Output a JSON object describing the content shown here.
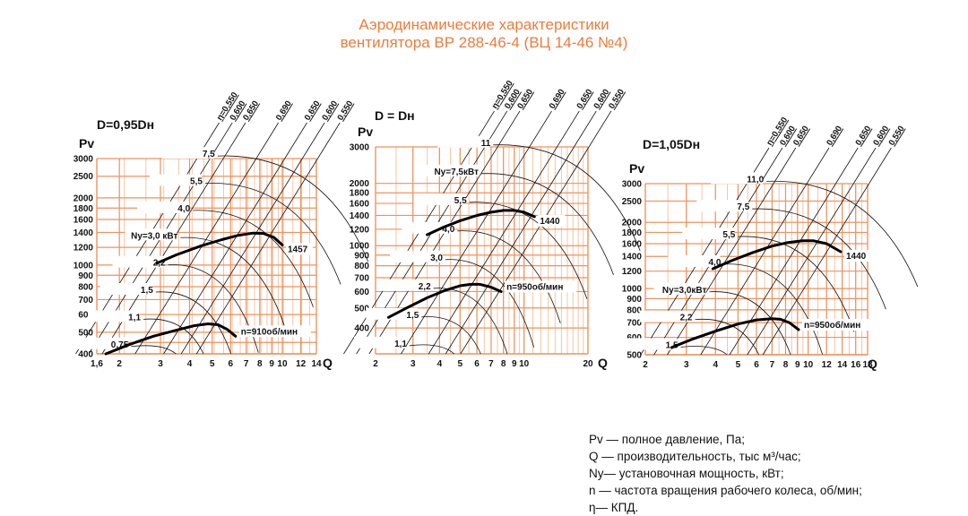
{
  "title": {
    "line1": "Аэродинамические характеристики",
    "line2": "вентилятора  ВР 288-46-4 (ВЦ 14-46 №4)"
  },
  "legend": [
    "Pv — полное давление, Па;",
    "Q  — производительность, тыс м³/час;",
    "Ny— установочная мощность, кВт;",
    "n — частота вращения рабочего колеса, об/мин;",
    "η— КПД."
  ],
  "colors": {
    "title": "#ef7b3b",
    "grid": "#f2905a",
    "grid_light": "#f8c4a3",
    "curve": "#000000"
  },
  "chart_data": [
    {
      "type": "line",
      "title": "D=0,95Dн",
      "xlabel": "Q",
      "ylabel": "Pv",
      "xscale": "log",
      "yscale": "log",
      "xlim": [
        1.6,
        14
      ],
      "ylim": [
        400,
        3000
      ],
      "x_ticks": [
        "1,6",
        "2",
        "3",
        "4",
        "5",
        "6",
        "7",
        "8",
        "9",
        "10",
        "12",
        "14"
      ],
      "x_tick_values": [
        1.6,
        2,
        3,
        4,
        5,
        6,
        7,
        8,
        9,
        10,
        12,
        14
      ],
      "y_ticks": [
        "3000",
        "2500",
        "2000",
        "1800",
        "1600",
        "1400",
        "1200",
        "1000",
        "900",
        "800",
        "700",
        "600",
        "500",
        "450",
        "400"
      ],
      "y_tick_values": [
        3000,
        2500,
        2000,
        1800,
        1600,
        1400,
        1200,
        1000,
        900,
        800,
        700,
        600,
        500,
        450,
        400
      ],
      "grid": true,
      "series": [
        {
          "name": "1457",
          "x": [
            2.9,
            3.5,
            4.5,
            5.5,
            6.5,
            7.5,
            8.3,
            9.2,
            10.0
          ],
          "y": [
            1020,
            1110,
            1220,
            1300,
            1360,
            1390,
            1385,
            1330,
            1230
          ]
        },
        {
          "name": "n=910об/мин",
          "x": [
            1.75,
            2.2,
            2.8,
            3.5,
            4.2,
            4.8,
            5.3,
            5.8,
            6.3
          ],
          "y": [
            400,
            440,
            480,
            510,
            535,
            545,
            540,
            515,
            480
          ]
        }
      ],
      "power_labels": [
        "0,75",
        "1,1",
        "1,5",
        "2,2",
        "Ny=3,0 кВт",
        "4,0",
        "5,5",
        "7,5"
      ],
      "efficiency_labels": [
        "η=0,550",
        "0,600",
        "0,650",
        "0,690",
        "0,650",
        "0,600",
        "0,550"
      ],
      "annotations": [
        "1457",
        "n=910об/мин"
      ]
    },
    {
      "type": "line",
      "title": "D = Dн",
      "xlabel": "Q",
      "ylabel": "Pv",
      "xscale": "log",
      "yscale": "log",
      "xlim": [
        2,
        20
      ],
      "ylim": [
        300,
        3000
      ],
      "x_ticks": [
        "2",
        "3",
        "4",
        "5",
        "6",
        "7",
        "8",
        "9",
        "10",
        "20"
      ],
      "x_tick_values": [
        2,
        3,
        4,
        5,
        6,
        7,
        8,
        9,
        10,
        20
      ],
      "y_ticks": [
        "3000",
        "2000",
        "1800",
        "1600",
        "1400",
        "1200",
        "1000",
        "900",
        "800",
        "700",
        "600",
        "500",
        "400"
      ],
      "y_tick_values": [
        3000,
        2000,
        1800,
        1600,
        1400,
        1200,
        1000,
        900,
        800,
        700,
        600,
        500,
        400
      ],
      "grid": true,
      "series": [
        {
          "name": "1440",
          "x": [
            3.5,
            4.2,
            5.0,
            6.0,
            7.0,
            8.0,
            9.0,
            10.0,
            11.2
          ],
          "y": [
            1130,
            1230,
            1320,
            1400,
            1450,
            1480,
            1480,
            1450,
            1380
          ]
        },
        {
          "name": "n=950об/мин",
          "x": [
            2.3,
            2.8,
            3.5,
            4.2,
            5.0,
            5.6,
            6.2,
            7.0,
            7.8
          ],
          "y": [
            450,
            500,
            560,
            605,
            640,
            650,
            650,
            630,
            600
          ]
        }
      ],
      "power_labels": [
        "1,1",
        "1,5",
        "2,2",
        "3,0",
        "4,0",
        "5,5",
        "Ny=7,5кВт",
        "11"
      ],
      "efficiency_labels": [
        "η=0,550",
        "0,600",
        "0,650",
        "0,690",
        "0,650",
        "0,600",
        "0,550"
      ],
      "annotations": [
        "1440",
        "n=950об/мин"
      ]
    },
    {
      "type": "line",
      "title": "D=1,05Dн",
      "xlabel": "Q",
      "ylabel": "Pv",
      "xscale": "log",
      "yscale": "log",
      "xlim": [
        2,
        18
      ],
      "ylim": [
        500,
        3000
      ],
      "x_ticks": [
        "2",
        "3",
        "4",
        "5",
        "6",
        "7",
        "8",
        "9",
        "10",
        "12",
        "14",
        "16",
        "18"
      ],
      "x_tick_values": [
        2,
        3,
        4,
        5,
        6,
        7,
        8,
        9,
        10,
        12,
        14,
        16,
        18
      ],
      "y_ticks": [
        "3000",
        "2500",
        "2000",
        "1800",
        "1600",
        "1400",
        "1200",
        "1000",
        "900",
        "800",
        "700",
        "600",
        "500"
      ],
      "y_tick_values": [
        3000,
        2500,
        2000,
        1800,
        1600,
        1400,
        1200,
        1000,
        900,
        800,
        700,
        600,
        500
      ],
      "grid": true,
      "series": [
        {
          "name": "1440",
          "x": [
            3.9,
            4.7,
            5.8,
            7.0,
            8.2,
            9.5,
            10.5,
            12.0,
            13.8
          ],
          "y": [
            1230,
            1340,
            1460,
            1560,
            1620,
            1650,
            1650,
            1600,
            1470
          ]
        },
        {
          "name": "n=950об/мин",
          "x": [
            2.6,
            3.2,
            4.0,
            5.0,
            6.0,
            7.0,
            7.6,
            8.3,
            9.1
          ],
          "y": [
            540,
            590,
            640,
            690,
            720,
            730,
            725,
            700,
            650
          ]
        }
      ],
      "power_labels": [
        "1,5",
        "2,2",
        "Ny=3,0кВт",
        "4,0",
        "5,5",
        "7,5",
        "11,0"
      ],
      "efficiency_labels": [
        "η=0,550",
        "0,600",
        "0,650",
        "0,690",
        "0,650",
        "0,600",
        "0,550"
      ],
      "annotations": [
        "1440",
        "n=950об/мин"
      ]
    }
  ]
}
